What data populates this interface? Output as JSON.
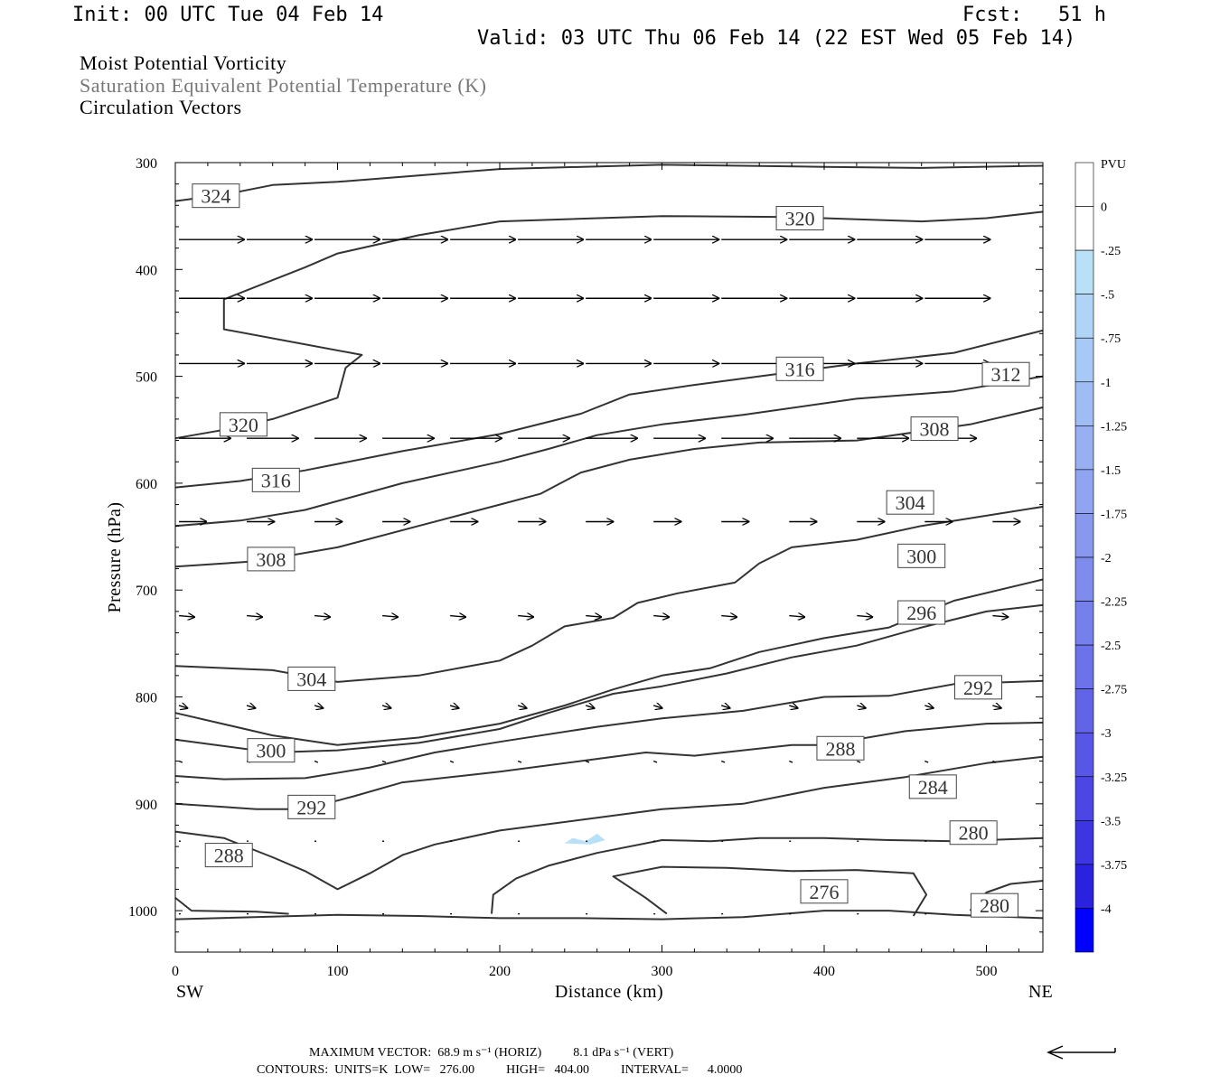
{
  "header": {
    "init": "Init: 00 UTC Tue 04 Feb 14",
    "fcst": "Fcst:   51 h",
    "valid": "Valid: 03 UTC Thu 06 Feb 14 (22 EST Wed 05 Feb 14)"
  },
  "legend_lines": [
    "Moist Potential Vorticity",
    "Saturation Equivalent Potential Temperature (K)",
    "Circulation Vectors"
  ],
  "footer": {
    "max_vector": "MAXIMUM VECTOR:  68.9 m s⁻¹ (HORIZ)          8.1 dPa s⁻¹ (VERT)",
    "contours": "CONTOURS:  UNITS=K  LOW=   276.00          HIGH=   404.00          INTERVAL=      4.0000"
  },
  "colors": {
    "contour": "#333333",
    "vector": "#000000",
    "pv_light": "#b8e0f7",
    "pv_dark": "#0000ff"
  },
  "chart_data": {
    "type": "contour",
    "xlabel": "Distance (km)",
    "ylabel": "Pressure (hPa)",
    "xlim": [
      0,
      535
    ],
    "ylim": [
      1040,
      300
    ],
    "y_scale": "linear, inverted",
    "x_ticks": [
      0,
      100,
      200,
      300,
      400,
      500
    ],
    "y_ticks": [
      300,
      400,
      500,
      600,
      700,
      800,
      900,
      1000
    ],
    "x_end_labels": {
      "left": "SW",
      "right": "NE"
    },
    "colorbar": {
      "title": "PVU",
      "labels": [
        "0",
        "-.25",
        "-.5",
        "-.75",
        "-1",
        "-1.25",
        "-1.5",
        "-1.75",
        "-2",
        "-2.25",
        "-2.5",
        "-2.75",
        "-3",
        "-3.25",
        "-3.5",
        "-3.75",
        "-4"
      ],
      "colors": [
        "#ffffff",
        "#ffffff",
        "#b8e0f7",
        "#b0d4f6",
        "#a8c8f5",
        "#a0bcf4",
        "#98b0f2",
        "#90a4f1",
        "#8898ef",
        "#7f8cee",
        "#7680ec",
        "#6c72ea",
        "#6264e8",
        "#5756e6",
        "#4b46e4",
        "#3d35e2",
        "#2b22e0",
        "#0000ff"
      ]
    },
    "contours": [
      {
        "label": "324",
        "points": [
          [
            0,
            336
          ],
          [
            30,
            330
          ],
          [
            60,
            321
          ],
          [
            100,
            318
          ],
          [
            150,
            312
          ],
          [
            200,
            306
          ],
          [
            300,
            302
          ],
          [
            400,
            304
          ],
          [
            460,
            305
          ],
          [
            535,
            303
          ]
        ]
      },
      {
        "label": "320",
        "points": [
          [
            0,
            558
          ],
          [
            30,
            550
          ],
          [
            60,
            540
          ],
          [
            100,
            520
          ],
          [
            105,
            492
          ],
          [
            115,
            480
          ],
          [
            30,
            456
          ],
          [
            30,
            428
          ],
          [
            60,
            410
          ],
          [
            80,
            398
          ],
          [
            100,
            385
          ],
          [
            150,
            368
          ],
          [
            200,
            355
          ],
          [
            300,
            350
          ],
          [
            380,
            351
          ],
          [
            420,
            353
          ],
          [
            460,
            355
          ],
          [
            500,
            352
          ],
          [
            535,
            346
          ]
        ]
      },
      {
        "label": "316",
        "points": [
          [
            0,
            604
          ],
          [
            40,
            598
          ],
          [
            80,
            588
          ],
          [
            140,
            570
          ],
          [
            200,
            554
          ],
          [
            250,
            535
          ],
          [
            280,
            517
          ],
          [
            320,
            508
          ],
          [
            380,
            496
          ],
          [
            420,
            488
          ],
          [
            480,
            478
          ],
          [
            535,
            457
          ]
        ]
      },
      {
        "label": "312",
        "points": [
          [
            0,
            640
          ],
          [
            40,
            635
          ],
          [
            80,
            625
          ],
          [
            140,
            600
          ],
          [
            200,
            580
          ],
          [
            230,
            568
          ],
          [
            260,
            555
          ],
          [
            300,
            545
          ],
          [
            350,
            536
          ],
          [
            420,
            521
          ],
          [
            480,
            514
          ],
          [
            535,
            500
          ]
        ]
      },
      {
        "label": "308",
        "points": [
          [
            0,
            678
          ],
          [
            50,
            673
          ],
          [
            100,
            660
          ],
          [
            150,
            640
          ],
          [
            200,
            620
          ],
          [
            225,
            610
          ],
          [
            250,
            590
          ],
          [
            280,
            578
          ],
          [
            320,
            568
          ],
          [
            360,
            562
          ],
          [
            420,
            560
          ],
          [
            490,
            545
          ],
          [
            535,
            529
          ]
        ]
      },
      {
        "label": "304",
        "points": [
          [
            0,
            771
          ],
          [
            60,
            775
          ],
          [
            100,
            786
          ],
          [
            150,
            780
          ],
          [
            200,
            766
          ],
          [
            220,
            752
          ],
          [
            240,
            734
          ],
          [
            270,
            726
          ],
          [
            285,
            712
          ],
          [
            310,
            703
          ],
          [
            345,
            693
          ],
          [
            360,
            675
          ],
          [
            380,
            660
          ],
          [
            420,
            653
          ],
          [
            460,
            640
          ],
          [
            535,
            622
          ]
        ]
      },
      {
        "label": "300",
        "points": [
          [
            0,
            815
          ],
          [
            60,
            836
          ],
          [
            100,
            845
          ],
          [
            150,
            838
          ],
          [
            200,
            825
          ],
          [
            240,
            808
          ],
          [
            270,
            793
          ],
          [
            300,
            780
          ],
          [
            330,
            773
          ],
          [
            360,
            758
          ],
          [
            400,
            745
          ],
          [
            440,
            735
          ],
          [
            480,
            710
          ],
          [
            535,
            690
          ]
        ]
      },
      {
        "label": "296",
        "points": [
          [
            0,
            840
          ],
          [
            60,
            852
          ],
          [
            100,
            850
          ],
          [
            150,
            843
          ],
          [
            200,
            830
          ],
          [
            230,
            815
          ],
          [
            270,
            797
          ],
          [
            300,
            790
          ],
          [
            340,
            778
          ],
          [
            380,
            763
          ],
          [
            420,
            752
          ],
          [
            460,
            735
          ],
          [
            500,
            720
          ],
          [
            535,
            714
          ]
        ]
      },
      {
        "label": "292",
        "points": [
          [
            0,
            874
          ],
          [
            30,
            877
          ],
          [
            80,
            876
          ],
          [
            120,
            866
          ],
          [
            160,
            852
          ],
          [
            200,
            842
          ],
          [
            260,
            828
          ],
          [
            300,
            820
          ],
          [
            350,
            813
          ],
          [
            400,
            800
          ],
          [
            440,
            799
          ],
          [
            480,
            788
          ],
          [
            535,
            785
          ]
        ]
      },
      {
        "label": "288",
        "points": [
          [
            0,
            900
          ],
          [
            50,
            905
          ],
          [
            80,
            905
          ],
          [
            110,
            893
          ],
          [
            140,
            880
          ],
          [
            200,
            870
          ],
          [
            260,
            858
          ],
          [
            290,
            852
          ],
          [
            320,
            855
          ],
          [
            350,
            850
          ],
          [
            380,
            845
          ],
          [
            400,
            845
          ],
          [
            450,
            832
          ],
          [
            500,
            825
          ],
          [
            535,
            824
          ]
        ]
      },
      {
        "label": "284",
        "points": [
          [
            0,
            926
          ],
          [
            30,
            932
          ],
          [
            60,
            950
          ],
          [
            80,
            963
          ],
          [
            100,
            980
          ],
          [
            120,
            965
          ],
          [
            140,
            948
          ],
          [
            160,
            938
          ],
          [
            200,
            925
          ],
          [
            260,
            913
          ],
          [
            300,
            905
          ],
          [
            350,
            900
          ],
          [
            400,
            885
          ],
          [
            450,
            875
          ],
          [
            500,
            862
          ],
          [
            535,
            856
          ]
        ]
      },
      {
        "label": "280",
        "points": [
          [
            195,
            1003
          ],
          [
            196,
            985
          ],
          [
            210,
            970
          ],
          [
            230,
            958
          ],
          [
            260,
            946
          ],
          [
            300,
            934
          ],
          [
            330,
            935
          ],
          [
            360,
            932
          ],
          [
            400,
            932
          ],
          [
            440,
            934
          ],
          [
            480,
            935
          ],
          [
            535,
            932
          ]
        ]
      },
      {
        "label": "276",
        "points": [
          [
            303,
            1003
          ],
          [
            290,
            988
          ],
          [
            270,
            968
          ],
          [
            300,
            959
          ],
          [
            340,
            960
          ],
          [
            380,
            963
          ],
          [
            420,
            962
          ],
          [
            455,
            965
          ],
          [
            463,
            985
          ],
          [
            455,
            1005
          ]
        ]
      },
      {
        "label": "280",
        "points": [
          [
            0,
            988
          ],
          [
            10,
            1000
          ],
          [
            50,
            1001
          ],
          [
            70,
            1003
          ]
        ]
      },
      {
        "label": "280",
        "points": [
          [
            490,
            1000
          ],
          [
            500,
            983
          ],
          [
            515,
            975
          ],
          [
            535,
            972
          ]
        ]
      },
      {
        "label": "",
        "points": [
          [
            0,
            1008
          ],
          [
            100,
            1004
          ],
          [
            150,
            1005
          ],
          [
            200,
            1007
          ],
          [
            250,
            1007
          ],
          [
            300,
            1008
          ],
          [
            350,
            1006
          ],
          [
            400,
            1000
          ],
          [
            440,
            1000
          ],
          [
            480,
            1004
          ],
          [
            535,
            1007
          ]
        ]
      }
    ],
    "contour_labels": [
      {
        "text": "324",
        "x": 25,
        "p": 331
      },
      {
        "text": "320",
        "x": 385,
        "p": 352
      },
      {
        "text": "316",
        "x": 385,
        "p": 493
      },
      {
        "text": "312",
        "x": 512,
        "p": 498
      },
      {
        "text": "320",
        "x": 42,
        "p": 545
      },
      {
        "text": "308",
        "x": 468,
        "p": 549
      },
      {
        "text": "316",
        "x": 62,
        "p": 597
      },
      {
        "text": "304",
        "x": 453,
        "p": 618
      },
      {
        "text": "300",
        "x": 460,
        "p": 668
      },
      {
        "text": "308",
        "x": 59,
        "p": 671
      },
      {
        "text": "296",
        "x": 460,
        "p": 721
      },
      {
        "text": "304",
        "x": 84,
        "p": 783
      },
      {
        "text": "292",
        "x": 495,
        "p": 791
      },
      {
        "text": "300",
        "x": 59,
        "p": 850
      },
      {
        "text": "288",
        "x": 410,
        "p": 848
      },
      {
        "text": "284",
        "x": 467,
        "p": 884
      },
      {
        "text": "292",
        "x": 84,
        "p": 903
      },
      {
        "text": "280",
        "x": 492,
        "p": 927
      },
      {
        "text": "288",
        "x": 33,
        "p": 948
      },
      {
        "text": "276",
        "x": 400,
        "p": 982
      },
      {
        "text": "280",
        "x": 505,
        "p": 995
      }
    ],
    "pv_regions": [
      {
        "value": -0.25,
        "points": [
          [
            240,
            937
          ],
          [
            245,
            932
          ],
          [
            253,
            935
          ],
          [
            260,
            928
          ],
          [
            265,
            934
          ],
          [
            256,
            938
          ]
        ]
      }
    ],
    "vector_rows": [
      {
        "p": 372,
        "u": 38,
        "v": 0
      },
      {
        "p": 427,
        "u": 38,
        "v": 0
      },
      {
        "p": 488,
        "u": 38,
        "v": 0
      },
      {
        "p": 558,
        "u": 30,
        "v": 0
      },
      {
        "p": 636,
        "u": 16,
        "v": 0
      },
      {
        "p": 724,
        "u": 9,
        "v": 1
      },
      {
        "p": 808,
        "u": 5,
        "v": 2
      },
      {
        "p": 860,
        "u": 2,
        "v": 1
      },
      {
        "p": 935,
        "u": 1,
        "v": 0
      },
      {
        "p": 1003,
        "u": 1,
        "v": 0
      }
    ],
    "vector_x_spacing": 41.8
  }
}
